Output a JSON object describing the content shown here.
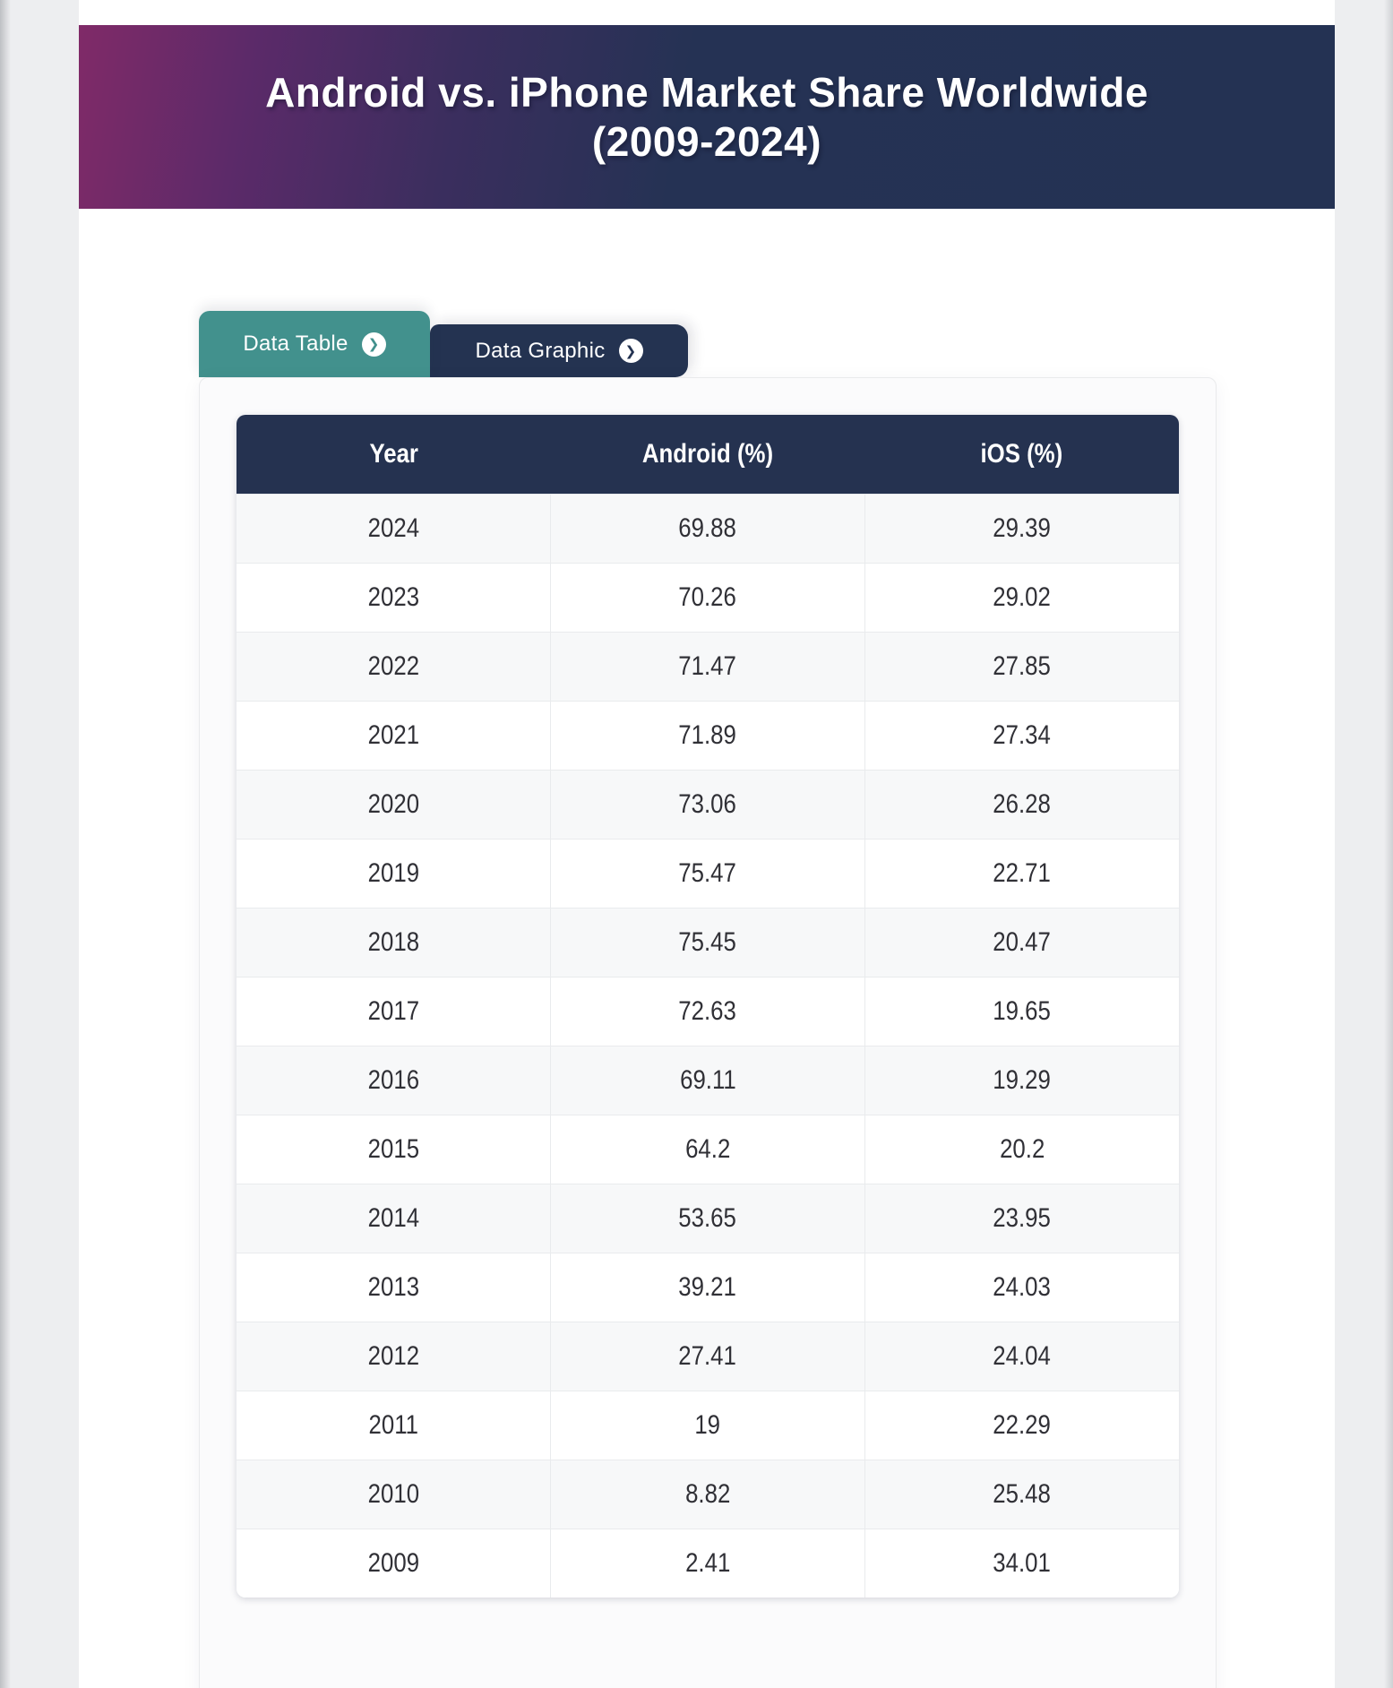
{
  "header": {
    "title_line1": "Android vs. iPhone Market Share Worldwide",
    "title_line2": "(2009-2024)",
    "gradient_from": "#802a68",
    "gradient_to": "#243253"
  },
  "tabs": {
    "chevron_glyph": "❯",
    "data_table": {
      "label": "Data Table",
      "color": "#42918D",
      "active": true
    },
    "data_graphic": {
      "label": "Data Graphic",
      "color": "#243351",
      "active": false
    }
  },
  "table": {
    "columns": [
      "Year",
      "Android (%)",
      "iOS (%)"
    ],
    "header_color": "#253250",
    "rows": [
      {
        "year": "2024",
        "android": "69.88",
        "ios": "29.39"
      },
      {
        "year": "2023",
        "android": "70.26",
        "ios": "29.02"
      },
      {
        "year": "2022",
        "android": "71.47",
        "ios": "27.85"
      },
      {
        "year": "2021",
        "android": "71.89",
        "ios": "27.34"
      },
      {
        "year": "2020",
        "android": "73.06",
        "ios": "26.28"
      },
      {
        "year": "2019",
        "android": "75.47",
        "ios": "22.71"
      },
      {
        "year": "2018",
        "android": "75.45",
        "ios": "20.47"
      },
      {
        "year": "2017",
        "android": "72.63",
        "ios": "19.65"
      },
      {
        "year": "2016",
        "android": "69.11",
        "ios": "19.29"
      },
      {
        "year": "2015",
        "android": "64.2",
        "ios": "20.2"
      },
      {
        "year": "2014",
        "android": "53.65",
        "ios": "23.95"
      },
      {
        "year": "2013",
        "android": "39.21",
        "ios": "24.03"
      },
      {
        "year": "2012",
        "android": "27.41",
        "ios": "24.04"
      },
      {
        "year": "2011",
        "android": "19",
        "ios": "22.29"
      },
      {
        "year": "2010",
        "android": "8.82",
        "ios": "25.48"
      },
      {
        "year": "2009",
        "android": "2.41",
        "ios": "34.01"
      }
    ]
  },
  "chart_data": {
    "type": "table",
    "title": "Android vs. iPhone Market Share Worldwide (2009-2024)",
    "columns": [
      "Year",
      "Android (%)",
      "iOS (%)"
    ],
    "rows": [
      [
        2024,
        69.88,
        29.39
      ],
      [
        2023,
        70.26,
        29.02
      ],
      [
        2022,
        71.47,
        27.85
      ],
      [
        2021,
        71.89,
        27.34
      ],
      [
        2020,
        73.06,
        26.28
      ],
      [
        2019,
        75.47,
        22.71
      ],
      [
        2018,
        75.45,
        20.47
      ],
      [
        2017,
        72.63,
        19.65
      ],
      [
        2016,
        69.11,
        19.29
      ],
      [
        2015,
        64.2,
        20.2
      ],
      [
        2014,
        53.65,
        23.95
      ],
      [
        2013,
        39.21,
        24.03
      ],
      [
        2012,
        27.41,
        24.04
      ],
      [
        2011,
        19,
        22.29
      ],
      [
        2010,
        8.82,
        25.48
      ],
      [
        2009,
        2.41,
        34.01
      ]
    ]
  }
}
